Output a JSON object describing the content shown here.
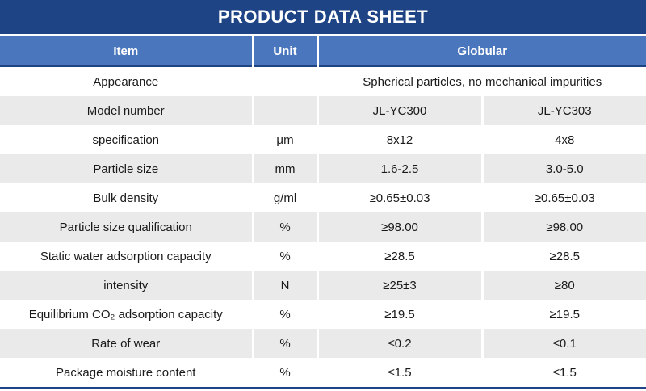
{
  "title": "PRODUCT DATA SHEET",
  "colors": {
    "title_bg": "#1e4486",
    "header_bg": "#4a76bd",
    "alt_row_bg": "#eaeaea",
    "border_accent": "#1e4486"
  },
  "table": {
    "headers": {
      "item": "Item",
      "unit": "Unit",
      "group": "Globular"
    },
    "rows": [
      {
        "item": "Appearance",
        "unit": "",
        "merged": "Spherical particles, no mechanical impurities"
      },
      {
        "item": "Model number",
        "unit": "",
        "v1": "JL-YC300",
        "v2": "JL-YC303"
      },
      {
        "item": "specification",
        "unit": "μm",
        "v1": "8x12",
        "v2": "4x8"
      },
      {
        "item": "Particle size",
        "unit": "mm",
        "v1": "1.6-2.5",
        "v2": "3.0-5.0"
      },
      {
        "item": "Bulk density",
        "unit": "g/ml",
        "v1": "≥0.65±0.03",
        "v2": "≥0.65±0.03"
      },
      {
        "item": "Particle size qualification",
        "unit": "%",
        "v1": "≥98.00",
        "v2": "≥98.00"
      },
      {
        "item": "Static water adsorption capacity",
        "unit": "%",
        "v1": "≥28.5",
        "v2": "≥28.5"
      },
      {
        "item": "intensity",
        "unit": "N",
        "v1": "≥25±3",
        "v2": "≥80"
      },
      {
        "item": "Equilibrium CO₂ adsorption capacity",
        "unit": "%",
        "v1": "≥19.5",
        "v2": "≥19.5"
      },
      {
        "item": "Rate of wear",
        "unit": "%",
        "v1": "≤0.2",
        "v2": "≤0.1"
      },
      {
        "item": "Package moisture content",
        "unit": "%",
        "v1": "≤1.5",
        "v2": "≤1.5"
      }
    ]
  }
}
